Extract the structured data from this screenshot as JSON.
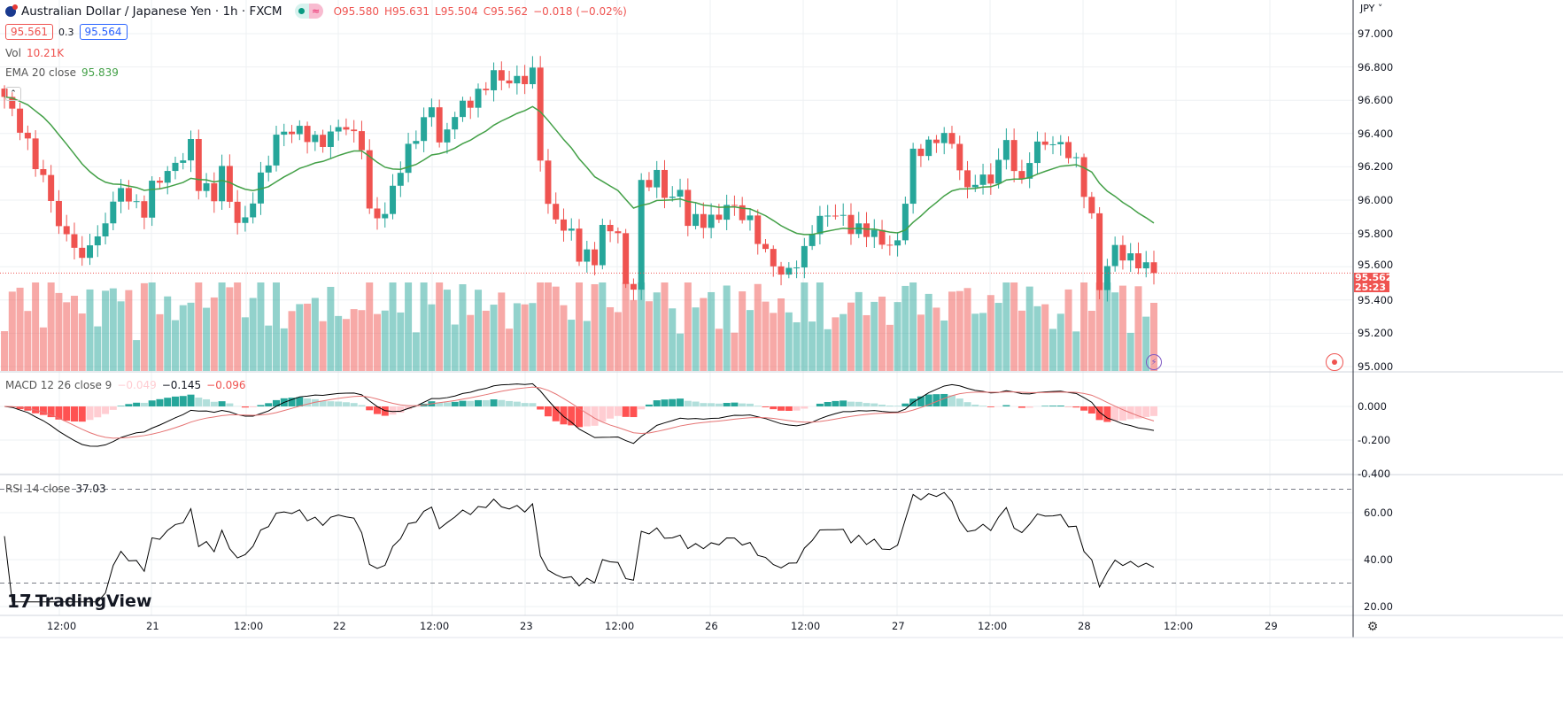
{
  "header": {
    "symbol_title": "Australian Dollar / Japanese Yen · 1h · FXCM",
    "market_status": "≈",
    "open": "O95.580",
    "high": "H95.631",
    "low": "L95.504",
    "close": "C95.562",
    "change": "−0.018 (−0.02%)",
    "bid": "95.561",
    "spread": "0.3",
    "ask": "95.564"
  },
  "indicators": {
    "vol_label": "Vol",
    "vol_value": "10.21K",
    "ema_label": "EMA 20 close",
    "ema_value": "95.839",
    "macd_label": "MACD 12 26 close 9",
    "macd_hist": "−0.049",
    "macd_line": "−0.145",
    "macd_signal": "−0.096",
    "rsi_label": "RSI 14 close",
    "rsi_value": "37.03"
  },
  "price_axis": {
    "currency": "JPY",
    "labels": [
      "97.000",
      "96.800",
      "96.600",
      "96.400",
      "96.200",
      "96.000",
      "95.800",
      "95.600",
      "95.400",
      "95.200",
      "95.000"
    ],
    "last_price": "95.562",
    "countdown": "25:23"
  },
  "macd_axis": {
    "labels": [
      "0.000",
      "-0.200",
      "-0.400"
    ]
  },
  "rsi_axis": {
    "labels": [
      "60.00",
      "40.00",
      "20.00"
    ]
  },
  "time_axis": {
    "labels": [
      "12:00",
      "21",
      "12:00",
      "22",
      "12:00",
      "23",
      "12:00",
      "26",
      "12:00",
      "27",
      "12:00",
      "28",
      "12:00",
      "29"
    ]
  },
  "logo": "TradingView",
  "colors": {
    "up": "#26a69a",
    "down": "#ef5350",
    "ema": "#43a047",
    "grid": "#eef0f3"
  },
  "chart_data": {
    "type": "candlestick",
    "interval": "1h",
    "price_path_hour_close": [
      [
        0,
        96.6
      ],
      [
        2,
        96.45
      ],
      [
        3,
        96.35
      ],
      [
        5,
        96.1
      ],
      [
        6,
        96.0
      ],
      [
        7,
        95.85
      ],
      [
        9,
        95.75
      ],
      [
        10,
        95.6
      ],
      [
        11,
        95.75
      ],
      [
        12,
        95.75
      ],
      [
        13,
        95.9
      ],
      [
        14,
        96.0
      ],
      [
        15,
        96.05
      ],
      [
        17,
        95.95
      ],
      [
        18,
        95.95
      ],
      [
        19,
        96.1
      ],
      [
        21,
        96.15
      ],
      [
        22,
        96.2
      ],
      [
        24,
        96.35
      ],
      [
        25,
        96.1
      ],
      [
        27,
        96.0
      ],
      [
        28,
        96.2
      ],
      [
        29,
        96.0
      ],
      [
        30,
        95.9
      ],
      [
        31,
        95.85
      ],
      [
        32,
        96.0
      ],
      [
        34,
        96.25
      ],
      [
        35,
        96.4
      ],
      [
        37,
        96.4
      ],
      [
        39,
        96.4
      ],
      [
        41,
        96.35
      ],
      [
        44,
        96.45
      ],
      [
        46,
        96.35
      ],
      [
        47,
        95.9
      ],
      [
        49,
        95.9
      ],
      [
        50,
        96.1
      ],
      [
        52,
        96.3
      ],
      [
        54,
        96.45
      ],
      [
        55,
        96.6
      ],
      [
        56,
        96.35
      ],
      [
        58,
        96.5
      ],
      [
        59,
        96.55
      ],
      [
        62,
        96.7
      ],
      [
        63,
        96.75
      ],
      [
        64,
        96.7
      ],
      [
        67,
        96.75
      ],
      [
        68,
        96.75
      ],
      [
        69,
        96.25
      ],
      [
        70,
        95.95
      ],
      [
        72,
        95.85
      ],
      [
        73,
        95.8
      ],
      [
        74,
        95.65
      ],
      [
        76,
        95.65
      ],
      [
        77,
        95.85
      ],
      [
        79,
        95.8
      ],
      [
        80,
        95.45
      ],
      [
        81,
        95.5
      ],
      [
        82,
        96.1
      ],
      [
        84,
        96.15
      ],
      [
        85,
        96.0
      ],
      [
        87,
        96.05
      ],
      [
        88,
        95.9
      ],
      [
        90,
        95.85
      ],
      [
        92,
        95.9
      ],
      [
        93,
        96.0
      ],
      [
        96,
        95.85
      ],
      [
        98,
        95.7
      ],
      [
        100,
        95.55
      ],
      [
        101,
        95.55
      ],
      [
        103,
        95.7
      ],
      [
        104,
        95.85
      ],
      [
        106,
        95.9
      ],
      [
        108,
        95.9
      ],
      [
        109,
        95.85
      ],
      [
        111,
        95.8
      ],
      [
        113,
        95.75
      ],
      [
        115,
        95.75
      ],
      [
        116,
        96.0
      ],
      [
        117,
        96.25
      ],
      [
        119,
        96.35
      ],
      [
        121,
        96.4
      ],
      [
        123,
        96.2
      ],
      [
        124,
        96.05
      ],
      [
        125,
        96.15
      ],
      [
        127,
        96.1
      ],
      [
        129,
        96.35
      ],
      [
        131,
        96.1
      ],
      [
        132,
        96.25
      ],
      [
        134,
        96.35
      ],
      [
        136,
        96.35
      ],
      [
        138,
        96.2
      ],
      [
        140,
        95.9
      ],
      [
        141,
        95.5
      ],
      [
        143,
        95.7
      ],
      [
        144,
        95.65
      ],
      [
        146,
        95.65
      ],
      [
        147,
        95.6
      ],
      [
        148,
        95.562
      ]
    ],
    "ylim": [
      95.0,
      97.0
    ],
    "volume_unit": "K"
  }
}
